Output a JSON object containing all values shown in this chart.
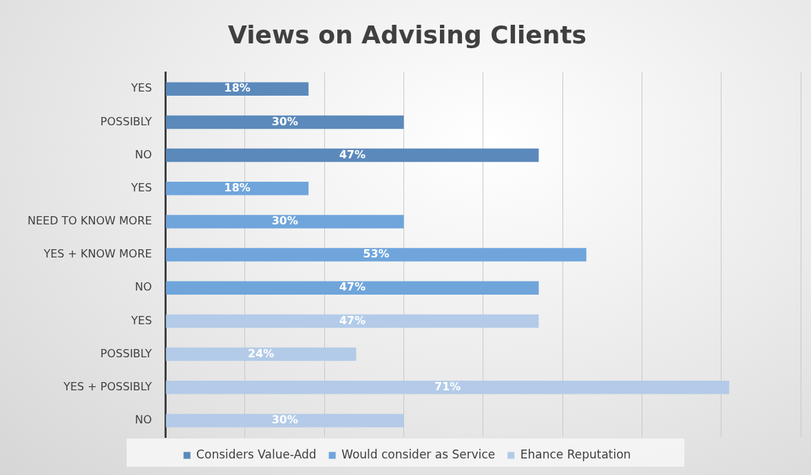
{
  "chart_data": {
    "type": "bar",
    "orientation": "horizontal",
    "title": "Views on Advising Clients",
    "categories": [
      "YES",
      "POSSIBLY",
      "NO",
      "YES",
      "NEED TO KNOW MORE",
      "YES + KNOW MORE",
      "NO",
      "YES",
      "POSSIBLY",
      "YES + POSSIBLY",
      "NO"
    ],
    "series": [
      {
        "name": "Considers Value-Add",
        "color": "#5b89bb",
        "values": [
          18,
          30,
          47,
          null,
          null,
          null,
          null,
          null,
          null,
          null,
          null
        ],
        "value_labels": [
          "18%",
          "30%",
          "47%",
          null,
          null,
          null,
          null,
          null,
          null,
          null,
          null
        ]
      },
      {
        "name": "Would consider as Service",
        "color": "#6fa5db",
        "values": [
          null,
          null,
          null,
          18,
          30,
          53,
          47,
          null,
          null,
          null,
          null
        ],
        "value_labels": [
          null,
          null,
          null,
          "18%",
          "30%",
          "53%",
          "47%",
          null,
          null,
          null,
          null
        ]
      },
      {
        "name": "Ehance Reputation",
        "color": "#b3cbe8",
        "values": [
          null,
          null,
          null,
          null,
          null,
          null,
          null,
          47,
          24,
          71,
          30
        ],
        "value_labels": [
          null,
          null,
          null,
          null,
          null,
          null,
          null,
          "47%",
          "24%",
          "71%",
          "30%"
        ]
      }
    ],
    "grid": "x",
    "legend": "bottom",
    "tick_labels": "y"
  }
}
